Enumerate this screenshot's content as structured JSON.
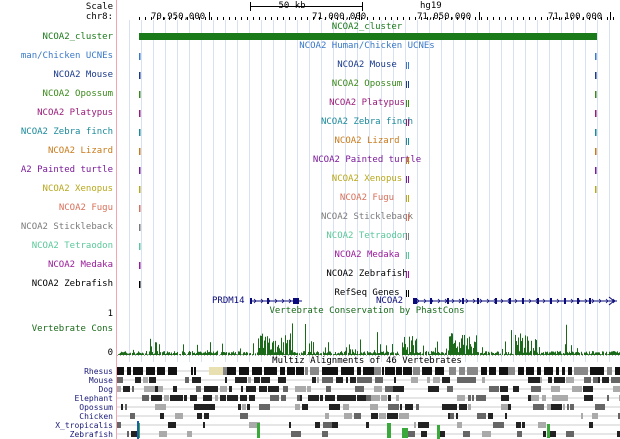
{
  "ruler": {
    "scale_label": "Scale",
    "chrom_label": "chr8:",
    "scale_bar_text": "50 kb",
    "assembly": "hg19",
    "positions": [
      "70,950,000",
      "71,000,000",
      "71,050,000",
      "71,100,000"
    ]
  },
  "tracks": [
    {
      "label": "NCOA2_cluster",
      "center_label": "NCOA2_cluster",
      "color": "#1a7a1a"
    },
    {
      "label": "man/Chicken UCNEs",
      "center_label": "NCOA2 Human/Chicken UCNEs",
      "color": "#3a78c8"
    },
    {
      "label": "NCOA2 Mouse",
      "center_label": "NCOA2 Mouse",
      "color": "#1a3a8a"
    },
    {
      "label": "NCOA2 Opossum",
      "center_label": "NCOA2 Opossum",
      "color": "#3a8a1a"
    },
    {
      "label": "NCOA2 Platypus",
      "center_label": "NCOA2 Platypus",
      "color": "#9a1a7a"
    },
    {
      "label": "NCOA2 Zebra finch",
      "center_label": "NCOA2 Zebra finch",
      "color": "#1a8a9a"
    },
    {
      "label": "NCOA2 Lizard",
      "center_label": "NCOA2 Lizard",
      "color": "#c87a1a"
    },
    {
      "label": "A2 Painted turtle",
      "center_label": "NCOA2 Painted turtle",
      "color": "#7a1a9a"
    },
    {
      "label": "NCOA2 Xenopus",
      "center_label": "NCOA2 Xenopus",
      "color": "#b8a81a"
    },
    {
      "label": "NCOA2 Fugu",
      "center_label": "NCOA2 Fugu",
      "color": "#d8705a"
    },
    {
      "label": "NCOA2 Stickleback",
      "center_label": "NCOA2 Stickleback",
      "color": "#7a7a7a"
    },
    {
      "label": "NCOA2 Tetraodon",
      "center_label": "NCOA2 Tetraodon",
      "color": "#5ac89a"
    },
    {
      "label": "NCOA2 Medaka",
      "center_label": "NCOA2 Medaka",
      "color": "#9a1a9a"
    },
    {
      "label": "NCOA2 Zebrafish",
      "center_label": "NCOA2 Zebrafish",
      "color": "#000000"
    }
  ],
  "refseq": {
    "title": "RefSeq Genes",
    "gene1": "PRDM14",
    "gene2": "NCOA2",
    "color": "#0a0a7a"
  },
  "conservation": {
    "label": "Vertebrate Cons",
    "title": "Vertebrate Conservation by PhastCons",
    "ymax": "1",
    "ymin": "0",
    "color": "#1a6a1a"
  },
  "multiz": {
    "title": "Multiz Alignments of 46 Vertebrates",
    "species": [
      "Rhesus",
      "Mouse",
      "Dog",
      "Elephant",
      "Opossum",
      "Chicken",
      "X_tropicalis",
      "Zebrafish"
    ],
    "label_color": "#1a1a7a"
  }
}
